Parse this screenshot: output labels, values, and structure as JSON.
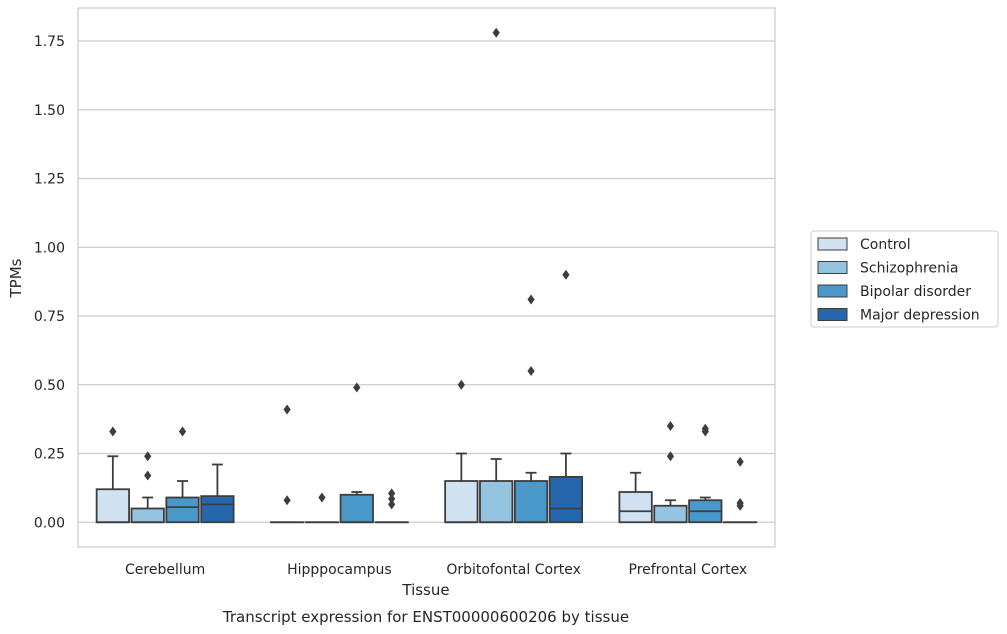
{
  "chart_data": {
    "type": "boxplot",
    "caption": "Transcript expression for ENST00000600206 by tissue",
    "xlabel": "Tissue",
    "ylabel": "TPMs",
    "ylim": [
      -0.09,
      1.87
    ],
    "yticks": [
      "0.00",
      "0.25",
      "0.50",
      "0.75",
      "1.00",
      "1.25",
      "1.50",
      "1.75"
    ],
    "grid": "horizontal",
    "legend_position": "right",
    "categories": [
      "Cerebellum",
      "Hipppocampus",
      "Orbitofontal Cortex",
      "Prefrontal Cortex"
    ],
    "series": [
      {
        "name": "Control",
        "color": "#d0e1f2",
        "boxes": [
          {
            "q1": 0.0,
            "median": 0.0,
            "q3": 0.12,
            "whislo": 0.0,
            "whishi": 0.24,
            "fliers": [
              0.33
            ]
          },
          {
            "q1": 0.0,
            "median": 0.0,
            "q3": 0.0,
            "whislo": 0.0,
            "whishi": 0.0,
            "fliers": [
              0.41,
              0.08
            ]
          },
          {
            "q1": 0.0,
            "median": 0.0,
            "q3": 0.15,
            "whislo": 0.0,
            "whishi": 0.25,
            "fliers": [
              0.5
            ]
          },
          {
            "q1": 0.0,
            "median": 0.04,
            "q3": 0.11,
            "whislo": 0.0,
            "whishi": 0.18,
            "fliers": []
          }
        ]
      },
      {
        "name": "Schizophrenia",
        "color": "#94c4df",
        "boxes": [
          {
            "q1": 0.0,
            "median": 0.0,
            "q3": 0.05,
            "whislo": 0.0,
            "whishi": 0.09,
            "fliers": [
              0.24,
              0.17
            ]
          },
          {
            "q1": 0.0,
            "median": 0.0,
            "q3": 0.0,
            "whislo": 0.0,
            "whishi": 0.0,
            "fliers": [
              0.09
            ]
          },
          {
            "q1": 0.0,
            "median": 0.0,
            "q3": 0.15,
            "whislo": 0.0,
            "whishi": 0.23,
            "fliers": [
              1.78
            ]
          },
          {
            "q1": 0.0,
            "median": 0.0,
            "q3": 0.06,
            "whislo": 0.0,
            "whishi": 0.08,
            "fliers": [
              0.35,
              0.24
            ]
          }
        ]
      },
      {
        "name": "Bipolar disorder",
        "color": "#4a98c9",
        "boxes": [
          {
            "q1": 0.0,
            "median": 0.055,
            "q3": 0.09,
            "whislo": 0.0,
            "whishi": 0.15,
            "fliers": [
              0.33
            ]
          },
          {
            "q1": 0.0,
            "median": 0.0,
            "q3": 0.1,
            "whislo": 0.0,
            "whishi": 0.11,
            "fliers": [
              0.49
            ]
          },
          {
            "q1": 0.0,
            "median": 0.0,
            "q3": 0.15,
            "whislo": 0.0,
            "whishi": 0.18,
            "fliers": [
              0.81,
              0.55
            ]
          },
          {
            "q1": 0.0,
            "median": 0.04,
            "q3": 0.08,
            "whislo": 0.0,
            "whishi": 0.09,
            "fliers": [
              0.34,
              0.33
            ]
          }
        ]
      },
      {
        "name": "Major depression",
        "color": "#2566ad",
        "boxes": [
          {
            "q1": 0.0,
            "median": 0.065,
            "q3": 0.095,
            "whislo": 0.0,
            "whishi": 0.21,
            "fliers": []
          },
          {
            "q1": 0.0,
            "median": 0.0,
            "q3": 0.0,
            "whislo": 0.0,
            "whishi": 0.0,
            "fliers": [
              0.105,
              0.085,
              0.065
            ]
          },
          {
            "q1": 0.0,
            "median": 0.05,
            "q3": 0.165,
            "whislo": 0.0,
            "whishi": 0.25,
            "fliers": [
              0.9
            ]
          },
          {
            "q1": 0.0,
            "median": 0.0,
            "q3": 0.0,
            "whislo": 0.0,
            "whishi": 0.0,
            "fliers": [
              0.22,
              0.07,
              0.06
            ]
          }
        ]
      }
    ]
  }
}
